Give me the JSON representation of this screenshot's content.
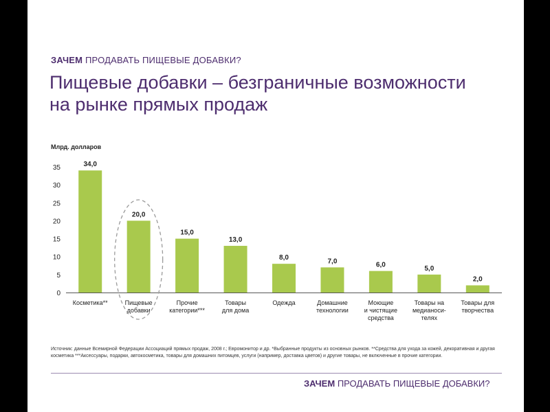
{
  "header": {
    "kicker_bold": "ЗАЧЕМ",
    "kicker_rest": "ПРОДАВАТЬ ПИЩЕВЫЕ ДОБАВКИ?",
    "title": "Пищевые добавки – безграничные возможности на рынке прямых продаж"
  },
  "chart_data": {
    "type": "bar",
    "ylabel": "Млрд. долларов",
    "ylim": [
      0,
      35
    ],
    "yticks": [
      0,
      5,
      10,
      15,
      20,
      25,
      30,
      35
    ],
    "categories": [
      [
        "Косметика**"
      ],
      [
        "Пищевые",
        "добавки"
      ],
      [
        "Прочие",
        "категории***"
      ],
      [
        "Товары",
        "для дома"
      ],
      [
        "Одежда"
      ],
      [
        "Домашние",
        "технологии"
      ],
      [
        "Моющие",
        "и чистящие",
        "средства"
      ],
      [
        "Товары на",
        "медианоси-",
        "телях"
      ],
      [
        "Товары для",
        "творчества"
      ]
    ],
    "values": [
      34.0,
      20.0,
      15.0,
      13.0,
      8.0,
      7.0,
      6.0,
      5.0,
      2.0
    ],
    "value_labels": [
      "34,0",
      "20,0",
      "15,0",
      "13,0",
      "8,0",
      "7,0",
      "6,0",
      "5,0",
      "2,0"
    ],
    "highlight_index": 1,
    "bar_color": "#a9c94d",
    "highlight_style": "dashed ellipse"
  },
  "footnote": "Источник: данные Всемирной Федерации Ассоциаций прямых продаж, 2008 г.; Евромонитор и др. *Выбранные продукты из основных рынков. **Средства для ухода за кожей, декоративная и другая косметика ***Аксессуары, подарки, автокосметика, товары для домашних питомцев, услуги (например, доставка цветов) и другие товары, не включенные в прочие категории.",
  "footer": {
    "bold": "ЗАЧЕМ",
    "rest": "ПРОДАВАТЬ ПИЩЕВЫЕ ДОБАВКИ?"
  },
  "colors": {
    "accent": "#4d2d6e",
    "bar": "#a9c94d"
  }
}
